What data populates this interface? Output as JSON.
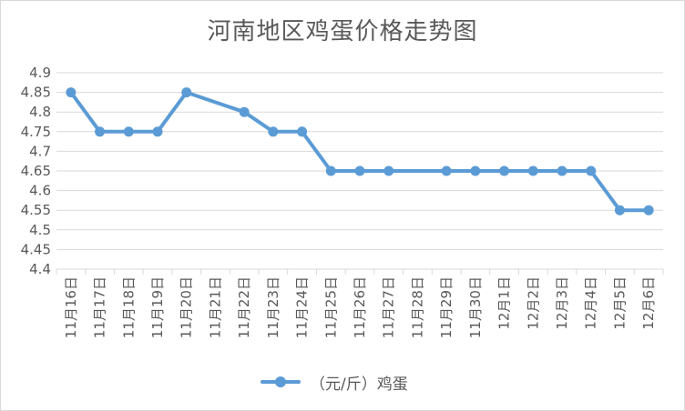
{
  "chart_data": {
    "type": "line",
    "title": "河南地区鸡蛋价格走势图",
    "xlabel": "",
    "ylabel": "",
    "categories": [
      "11月16日",
      "11月17日",
      "11月18日",
      "11月19日",
      "11月20日",
      "11月21日",
      "11月22日",
      "11月23日",
      "11月24日",
      "11月25日",
      "11月26日",
      "11月27日",
      "11月28日",
      "11月29日",
      "11月30日",
      "12月1日",
      "12月2日",
      "12月3日",
      "12月4日",
      "12月5日",
      "12月6日"
    ],
    "series": [
      {
        "name": "（元/斤）鸡蛋",
        "values": [
          4.85,
          4.75,
          4.75,
          4.75,
          4.85,
          null,
          4.8,
          4.75,
          4.75,
          4.65,
          4.65,
          4.65,
          null,
          4.65,
          4.65,
          4.65,
          4.65,
          4.65,
          4.65,
          4.55,
          4.55
        ]
      }
    ],
    "yticks": [
      "4.4",
      "4.45",
      "4.5",
      "4.55",
      "4.6",
      "4.65",
      "4.7",
      "4.75",
      "4.8",
      "4.85",
      "4.9"
    ],
    "ylim": [
      4.4,
      4.9
    ],
    "grid": true,
    "legend": "bottom",
    "colors": {
      "series": "#5b9bd5",
      "grid": "#d9d9d9",
      "text": "#595959"
    }
  }
}
